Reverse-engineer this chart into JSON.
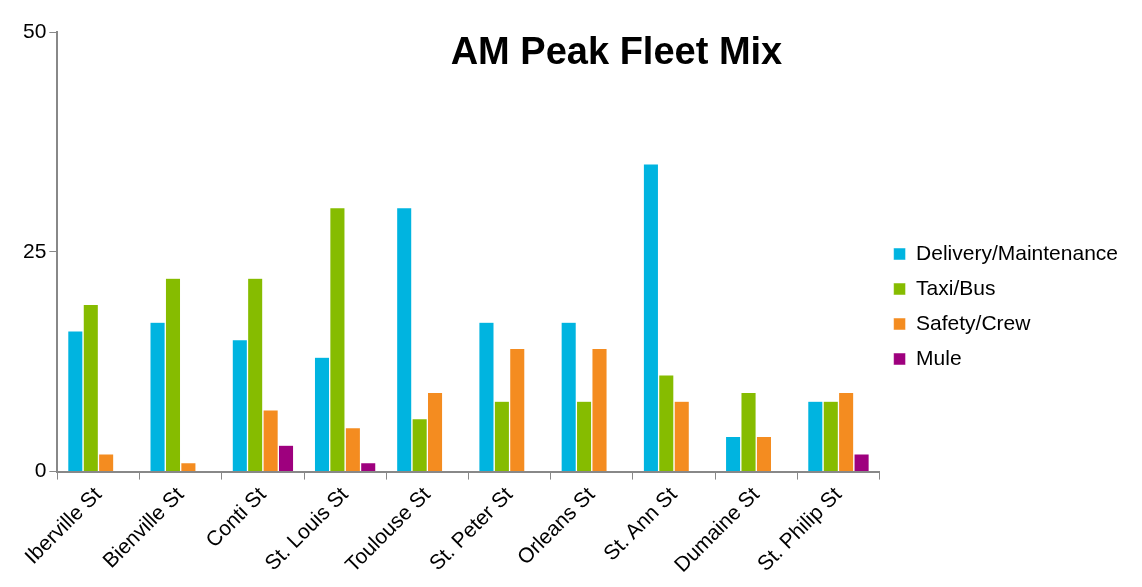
{
  "chart_data": {
    "type": "bar",
    "title": "AM Peak Fleet Mix",
    "categories": [
      "Iberville St",
      "Bienville St",
      "Conti St",
      "St. Louis St",
      "Toulouse St",
      "St. Peter St",
      "Orleans St",
      "St. Ann St",
      "Dumaine St",
      "St. Philip St"
    ],
    "series": [
      {
        "name": "Delivery/Maintenance",
        "color": "#00b4e0",
        "values": [
          16,
          17,
          15,
          13,
          30,
          17,
          17,
          35,
          4,
          8
        ]
      },
      {
        "name": "Taxi/Bus",
        "color": "#86bc00",
        "values": [
          19,
          22,
          22,
          30,
          6,
          8,
          8,
          11,
          9,
          8
        ]
      },
      {
        "name": "Safety/Crew",
        "color": "#f48c20",
        "values": [
          2,
          1,
          7,
          5,
          9,
          14,
          14,
          8,
          4,
          9
        ]
      },
      {
        "name": "Mule",
        "color": "#9e007e",
        "values": [
          0,
          0,
          3,
          1,
          0,
          0,
          0,
          0,
          0,
          2
        ]
      }
    ],
    "ylim": [
      0,
      50
    ],
    "yticks": [
      0,
      25,
      50
    ],
    "grid": false,
    "legend": "right"
  }
}
